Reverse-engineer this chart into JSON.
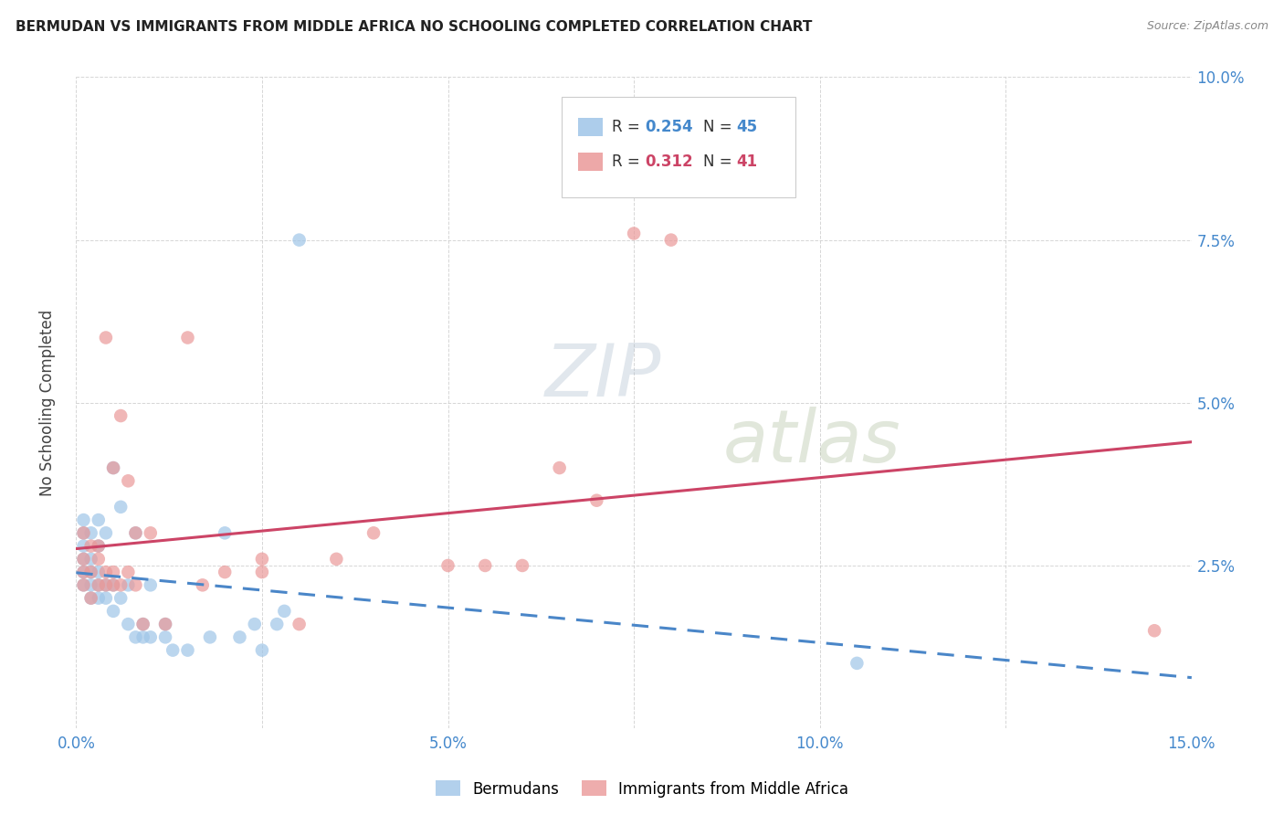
{
  "title": "BERMUDAN VS IMMIGRANTS FROM MIDDLE AFRICA NO SCHOOLING COMPLETED CORRELATION CHART",
  "source": "Source: ZipAtlas.com",
  "ylabel": "No Schooling Completed",
  "xlim": [
    0.0,
    0.15
  ],
  "ylim": [
    0.0,
    0.1
  ],
  "xticks": [
    0.0,
    0.025,
    0.05,
    0.075,
    0.1,
    0.125,
    0.15
  ],
  "xticklabels": [
    "0.0%",
    "",
    "5.0%",
    "",
    "10.0%",
    "",
    "15.0%"
  ],
  "yticks": [
    0.0,
    0.025,
    0.05,
    0.075,
    0.1
  ],
  "yticklabels": [
    "",
    "2.5%",
    "5.0%",
    "7.5%",
    "10.0%"
  ],
  "grid_color": "#cccccc",
  "background_color": "#ffffff",
  "bermuda_color": "#9fc5e8",
  "immigrant_color": "#ea9999",
  "bermuda_line_color": "#4a86c8",
  "immigrant_line_color": "#cc4466",
  "r_bermuda": 0.254,
  "n_bermuda": 45,
  "r_immigrant": 0.312,
  "n_immigrant": 41,
  "bermuda_x": [
    0.001,
    0.001,
    0.001,
    0.001,
    0.001,
    0.001,
    0.002,
    0.002,
    0.002,
    0.002,
    0.002,
    0.003,
    0.003,
    0.003,
    0.003,
    0.003,
    0.004,
    0.004,
    0.004,
    0.005,
    0.005,
    0.005,
    0.006,
    0.006,
    0.007,
    0.007,
    0.008,
    0.008,
    0.009,
    0.009,
    0.01,
    0.01,
    0.012,
    0.012,
    0.013,
    0.015,
    0.018,
    0.02,
    0.022,
    0.024,
    0.025,
    0.027,
    0.028,
    0.03,
    0.105
  ],
  "bermuda_y": [
    0.022,
    0.024,
    0.026,
    0.028,
    0.03,
    0.032,
    0.02,
    0.022,
    0.024,
    0.026,
    0.03,
    0.02,
    0.022,
    0.024,
    0.028,
    0.032,
    0.02,
    0.022,
    0.03,
    0.018,
    0.022,
    0.04,
    0.02,
    0.034,
    0.016,
    0.022,
    0.014,
    0.03,
    0.014,
    0.016,
    0.014,
    0.022,
    0.014,
    0.016,
    0.012,
    0.012,
    0.014,
    0.03,
    0.014,
    0.016,
    0.012,
    0.016,
    0.018,
    0.075,
    0.01
  ],
  "immigrant_x": [
    0.001,
    0.001,
    0.001,
    0.001,
    0.002,
    0.002,
    0.002,
    0.003,
    0.003,
    0.003,
    0.004,
    0.004,
    0.004,
    0.005,
    0.005,
    0.005,
    0.006,
    0.006,
    0.007,
    0.007,
    0.008,
    0.008,
    0.009,
    0.01,
    0.012,
    0.015,
    0.017,
    0.02,
    0.025,
    0.025,
    0.03,
    0.035,
    0.04,
    0.05,
    0.055,
    0.06,
    0.065,
    0.07,
    0.075,
    0.08,
    0.145
  ],
  "immigrant_y": [
    0.022,
    0.024,
    0.026,
    0.03,
    0.02,
    0.024,
    0.028,
    0.022,
    0.026,
    0.028,
    0.022,
    0.024,
    0.06,
    0.022,
    0.024,
    0.04,
    0.022,
    0.048,
    0.024,
    0.038,
    0.022,
    0.03,
    0.016,
    0.03,
    0.016,
    0.06,
    0.022,
    0.024,
    0.024,
    0.026,
    0.016,
    0.026,
    0.03,
    0.025,
    0.025,
    0.025,
    0.04,
    0.035,
    0.076,
    0.075,
    0.015
  ],
  "bermuda_trend": [
    0.0,
    0.15
  ],
  "immigrant_trend": [
    0.0,
    0.15
  ]
}
